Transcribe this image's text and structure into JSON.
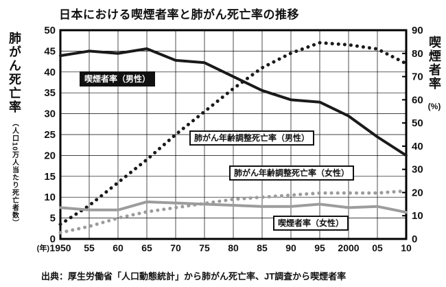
{
  "chart_data": {
    "type": "line",
    "title": "日本における喫煙者率と肺がん死亡率の推移",
    "x_axis_prefix": "(年)",
    "x_categories": [
      "1950",
      "55",
      "60",
      "65",
      "70",
      "75",
      "80",
      "85",
      "90",
      "95",
      "2000",
      "05",
      "10"
    ],
    "left_axis": {
      "label": "肺がん死亡率",
      "sublabel": "（人口10万人当たり死亡者数）",
      "min": 0,
      "max": 50,
      "step": 5
    },
    "right_axis": {
      "label": "喫煙者率",
      "unit": "(%)",
      "min": 0,
      "max": 90,
      "step": 10
    },
    "grid": true,
    "legend_position": "inline-labels",
    "series": [
      {
        "name": "喫煙者率（男性）",
        "axis": "right",
        "style": "solid",
        "color": "#1a1a1a",
        "values": [
          79,
          81,
          80,
          82,
          77,
          76,
          70,
          64,
          60,
          59,
          53,
          44,
          36
        ]
      },
      {
        "name": "肺がん年齢調整死亡率（男性）",
        "axis": "left",
        "style": "dotted",
        "color": "#1a1a1a",
        "values": [
          3.5,
          8,
          13.5,
          19,
          25,
          30.5,
          36,
          41,
          44.5,
          47,
          46.5,
          45.5,
          42
        ]
      },
      {
        "name": "肺がん年齢調整死亡率（女性）",
        "axis": "left",
        "style": "dotted",
        "color": "#9c9c9c",
        "values": [
          1.5,
          3,
          5,
          6.5,
          7.5,
          8.5,
          9.5,
          10,
          10.5,
          11,
          11,
          11,
          11.5
        ]
      },
      {
        "name": "喫煙者率（女性）",
        "axis": "right",
        "style": "solid",
        "color": "#9c9c9c",
        "values": [
          13.5,
          12.5,
          12.5,
          16,
          15.5,
          15,
          14.5,
          14,
          14,
          15,
          13.5,
          14,
          11.5
        ]
      }
    ],
    "source": "出典：厚生労働省「人口動態統計」から肺がん死亡率、JT調査から喫煙者率"
  }
}
